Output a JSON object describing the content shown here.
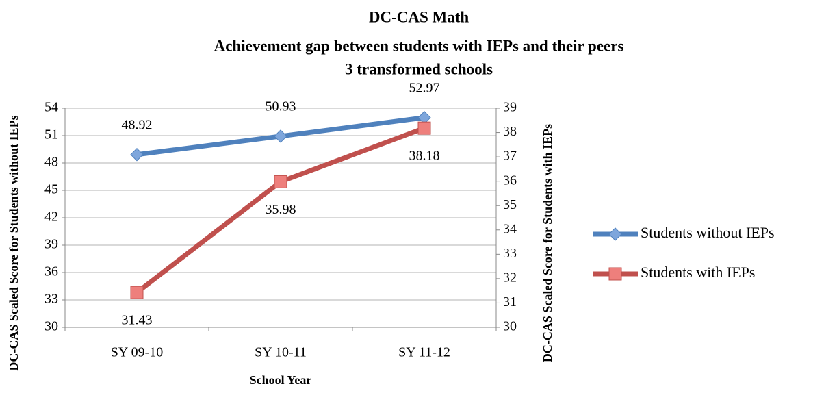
{
  "chart_data": {
    "type": "line",
    "title": "DC-CAS Math",
    "subtitle": [
      "Achievement gap between students with IEPs and their peers",
      "3 transformed schools"
    ],
    "x_label": "School Year",
    "y_label": "DC-CAS Scaled Score for Students without IEPs",
    "y2_label": "DC-CAS Scaled Score for Students with IEPs",
    "categories": [
      "SY 09-10",
      "SY 10-11",
      "SY 11-12"
    ],
    "series": [
      {
        "name": "Students without IEPs",
        "color": "#4f81bd",
        "marker_color": "#7ea6dc",
        "marker": "diamond",
        "axis": "y",
        "values": [
          48.92,
          50.93,
          52.97
        ]
      },
      {
        "name": "Students with IEPs",
        "color": "#c0504d",
        "marker_color": "#ee7f7c",
        "marker": "square",
        "axis": "y2",
        "values": [
          31.43,
          35.98,
          38.18
        ]
      }
    ],
    "ylim": [
      30,
      54
    ],
    "yticks": [
      30,
      33,
      36,
      39,
      42,
      45,
      48,
      51,
      54
    ],
    "y2lim": [
      30,
      39
    ],
    "y2ticks": [
      30,
      31,
      32,
      33,
      34,
      35,
      36,
      37,
      38,
      39
    ],
    "grid": true,
    "legend": "right"
  }
}
